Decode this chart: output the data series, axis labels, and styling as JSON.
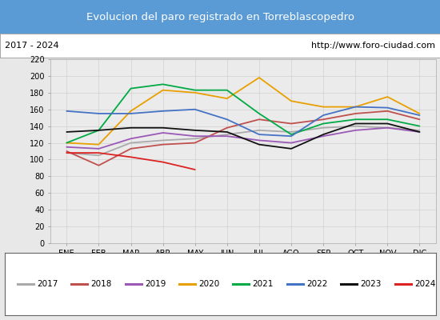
{
  "title": "Evolucion del paro registrado en Torreblascopedro",
  "subtitle_left": "2017 - 2024",
  "subtitle_right": "http://www.foro-ciudad.com",
  "title_bg_color": "#5b9bd5",
  "title_text_color": "#ffffff",
  "months": [
    "ENE",
    "FEB",
    "MAR",
    "ABR",
    "MAY",
    "JUN",
    "JUL",
    "AGO",
    "SEP",
    "OCT",
    "NOV",
    "DIC"
  ],
  "ylim": [
    0,
    220
  ],
  "yticks": [
    0,
    20,
    40,
    60,
    80,
    100,
    120,
    140,
    160,
    180,
    200,
    220
  ],
  "series": {
    "2017": {
      "color": "#aaaaaa",
      "data": [
        108,
        105,
        120,
        123,
        125,
        130,
        135,
        133,
        138,
        140,
        138,
        135
      ]
    },
    "2018": {
      "color": "#c0504d",
      "data": [
        110,
        93,
        113,
        118,
        120,
        138,
        148,
        143,
        148,
        155,
        158,
        148
      ]
    },
    "2019": {
      "color": "#9b59b6",
      "data": [
        115,
        113,
        125,
        132,
        128,
        128,
        123,
        120,
        128,
        135,
        138,
        133
      ]
    },
    "2020": {
      "color": "#e8a000",
      "data": [
        120,
        118,
        158,
        183,
        180,
        173,
        198,
        170,
        163,
        163,
        175,
        155
      ]
    },
    "2021": {
      "color": "#00aa44",
      "data": [
        120,
        135,
        185,
        190,
        183,
        183,
        155,
        130,
        143,
        148,
        148,
        140
      ]
    },
    "2022": {
      "color": "#4472c4",
      "data": [
        158,
        155,
        155,
        158,
        160,
        148,
        130,
        128,
        153,
        163,
        162,
        153
      ]
    },
    "2023": {
      "color": "#111111",
      "data": [
        133,
        135,
        138,
        138,
        135,
        133,
        118,
        113,
        130,
        143,
        143,
        133
      ]
    },
    "2024": {
      "color": "#dd2222",
      "data": [
        108,
        108,
        103,
        97,
        88,
        null,
        null,
        null,
        null,
        null,
        null,
        null
      ]
    }
  },
  "legend_order": [
    "2017",
    "2018",
    "2019",
    "2020",
    "2021",
    "2022",
    "2023",
    "2024"
  ],
  "outer_bg": "#e8e8e8",
  "plot_bg_color": "#ebebeb",
  "grid_color": "#d0d0d0",
  "border_color": "#aaaaaa"
}
